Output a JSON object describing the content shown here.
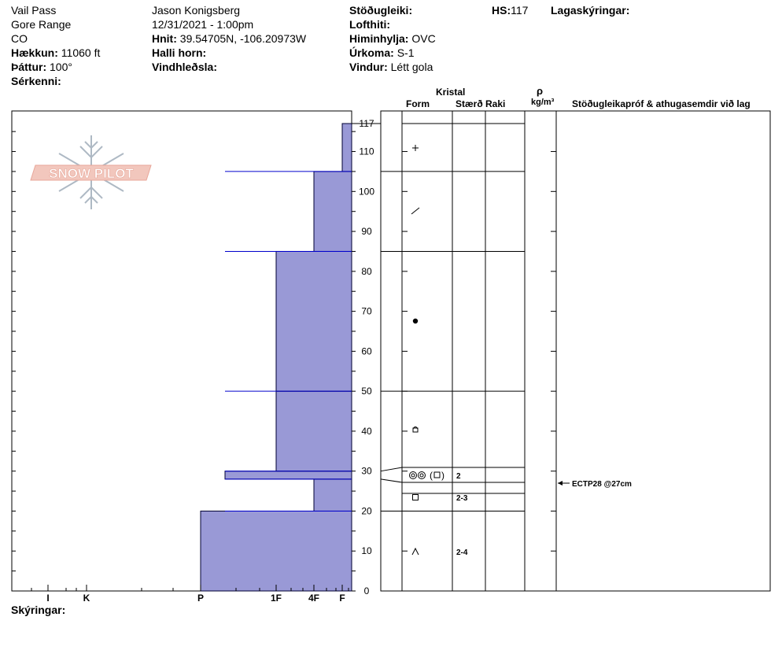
{
  "header": {
    "location": "Vail Pass",
    "range": "Gore Range",
    "state": "CO",
    "elevation_label": "Hækkun:",
    "elevation": "11060 ft",
    "aspect_label": "Þáttur:",
    "aspect": "100°",
    "specifics_label": "Sérkenni:",
    "observer": "Jason Konigsberg",
    "datetime": "12/31/2021 - 1:00pm",
    "coords_label": "Hnit:",
    "coords": "39.54705N, -106.20973W",
    "slope_label": "Halli horn:",
    "wind_loading_label": "Vindhleðsla:",
    "stability_label": "Stöðugleiki:",
    "air_temp_label": "Lofthiti:",
    "sky_label": "Himinhylja:",
    "sky": "OVC",
    "precip_label": "Úrkoma:",
    "precip": "S-1",
    "wind_label": "Vindur:",
    "wind": "Létt gola",
    "hs_label": "HS:",
    "hs": "117",
    "layer_notes_label": "Lagaskýringar:"
  },
  "columns": {
    "crystal": "Kristal",
    "form": "Form",
    "size": "Stærð",
    "moisture": "Raki",
    "rho": "ρ",
    "density_unit": "kg/m³",
    "tests": "Stöðugleikapróf & athugasemdir við lag"
  },
  "footer": {
    "notes_label": "Skýringar:"
  },
  "logo": {
    "text": "SNOW PILOT",
    "color": "#e8a79a"
  },
  "colors": {
    "profile_fill": "#9999d6",
    "layer_line": "#0000cc"
  },
  "chart_data": {
    "type": "bar",
    "hardness_ticks": [
      "I",
      "K",
      "P",
      "1F",
      "4F",
      "F"
    ],
    "y_ticks": [
      0,
      10,
      20,
      30,
      40,
      50,
      60,
      70,
      80,
      90,
      100,
      110,
      117
    ],
    "ylim": [
      0,
      117
    ],
    "layers": [
      {
        "bottom": 0,
        "top": 20,
        "hardness": "P",
        "form": "caret",
        "size": "2-4"
      },
      {
        "bottom": 20,
        "top": 28,
        "hardness": "4F",
        "form": "square",
        "size": "2-3"
      },
      {
        "bottom": 28,
        "top": 30,
        "hardness": "P-",
        "form": "rounded-crust",
        "size": "2"
      },
      {
        "bottom": 30,
        "top": 50,
        "hardness": "1F",
        "form": "",
        "size": ""
      },
      {
        "bottom": 50,
        "top": 85,
        "hardness": "1F",
        "form": "dot",
        "size": ""
      },
      {
        "bottom": 85,
        "top": 105,
        "hardness": "4F",
        "form": "slash",
        "size": ""
      },
      {
        "bottom": 105,
        "top": 117,
        "hardness": "F",
        "form": "plus",
        "size": ""
      }
    ],
    "tests": [
      {
        "height": 27,
        "text": "ECTP28 @27cm"
      }
    ]
  }
}
